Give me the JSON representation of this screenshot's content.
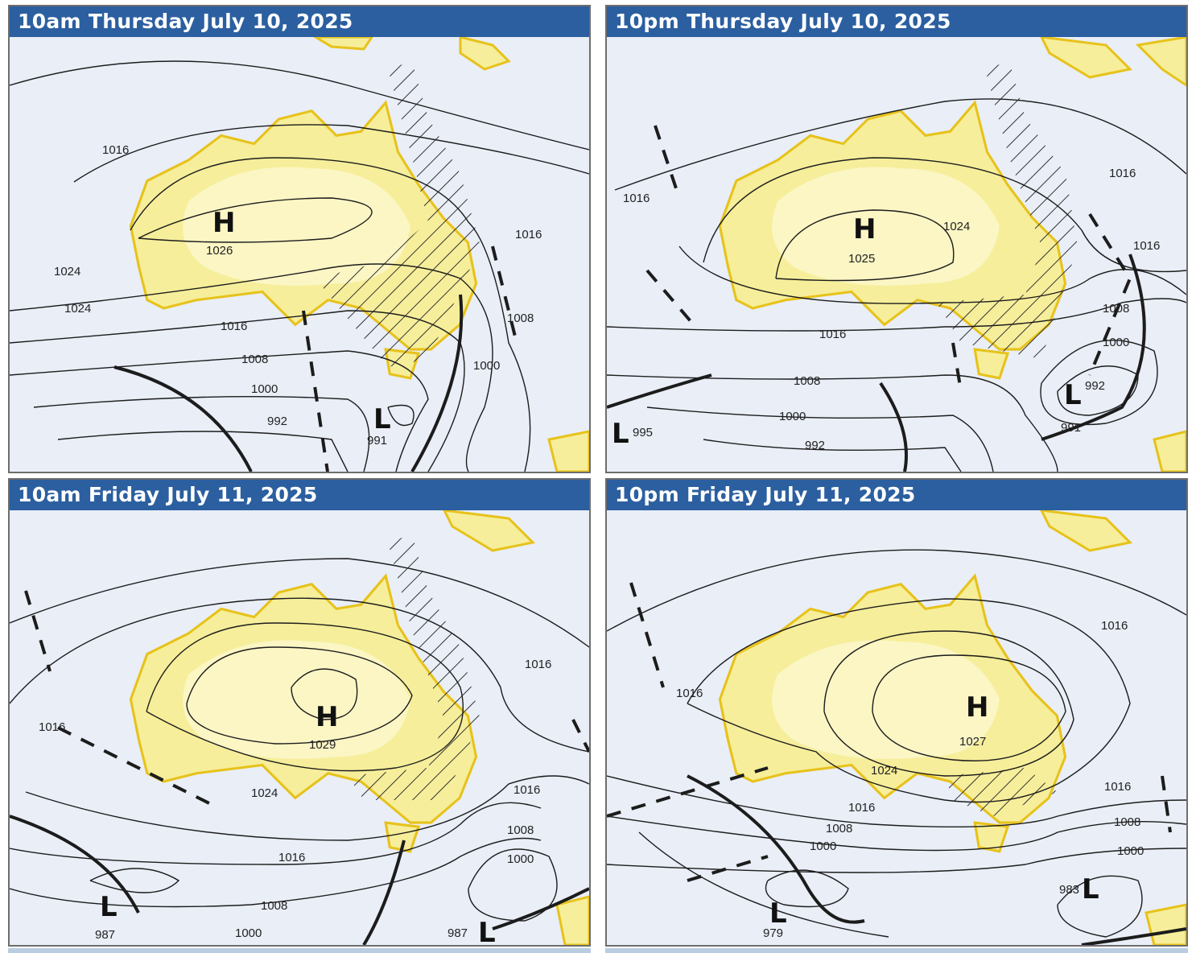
{
  "panels": [
    {
      "title": "10am Thursday July 10, 2025",
      "isobar_labels": [
        "1016",
        "1024",
        "1024",
        "1016",
        "1008",
        "1000",
        "992",
        "1016",
        "1008",
        "1000"
      ],
      "high": {
        "symbol": "H",
        "value": "1026"
      },
      "lows": [
        {
          "symbol": "L",
          "value": "991"
        }
      ]
    },
    {
      "title": "10pm Thursday July 10, 2025",
      "isobar_labels": [
        "1016",
        "1016",
        "1024",
        "1016",
        "1016",
        "1008",
        "1000",
        "1008",
        "1000",
        "992",
        "992"
      ],
      "high": {
        "symbol": "H",
        "value": "1025"
      },
      "lows": [
        {
          "symbol": "L",
          "value": "995"
        },
        {
          "symbol": "L",
          "value": "991"
        }
      ]
    },
    {
      "title": "10am Friday July 11, 2025",
      "isobar_labels": [
        "1016",
        "1016",
        "1024",
        "1016",
        "1016",
        "1008",
        "1000",
        "1008",
        "1000"
      ],
      "high": {
        "symbol": "H",
        "value": "1029"
      },
      "lows": [
        {
          "symbol": "L",
          "value": "987"
        },
        {
          "symbol": "L",
          "value": "987"
        }
      ]
    },
    {
      "title": "10pm Friday July 11, 2025",
      "isobar_labels": [
        "1016",
        "1016",
        "1024",
        "1016",
        "1008",
        "1000",
        "1016",
        "1008",
        "1000"
      ],
      "high": {
        "symbol": "H",
        "value": "1027"
      },
      "lows": [
        {
          "symbol": "L",
          "value": "979"
        },
        {
          "symbol": "L",
          "value": "983"
        }
      ]
    }
  ],
  "colors": {
    "header": "#2b5fa0",
    "ocean": "#e9eef7",
    "land": "#f6ee9a",
    "coast": "#e7c21a",
    "isobar": "#1c1c1c"
  }
}
